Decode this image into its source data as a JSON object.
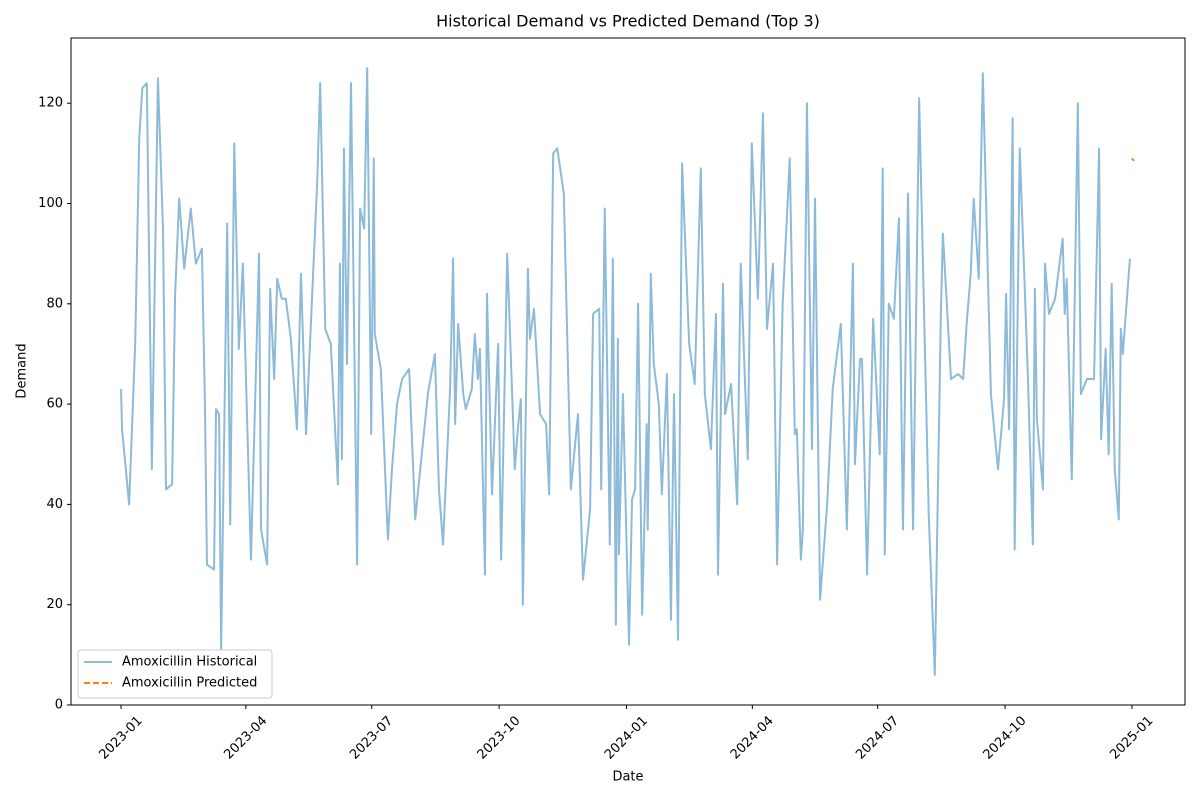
{
  "chart_data": {
    "type": "line",
    "title": "Historical Demand vs Predicted Demand (Top 3)",
    "xlabel": "Date",
    "ylabel": "Demand",
    "xlim": [
      2022.901,
      2025.105
    ],
    "ylim": [
      0,
      133
    ],
    "xticks": [
      {
        "value": 2023.0,
        "label": "2023-01"
      },
      {
        "value": 2023.247,
        "label": "2023-04"
      },
      {
        "value": 2023.496,
        "label": "2023-07"
      },
      {
        "value": 2023.748,
        "label": "2023-10"
      },
      {
        "value": 2024.0,
        "label": "2024-01"
      },
      {
        "value": 2024.249,
        "label": "2024-04"
      },
      {
        "value": 2024.497,
        "label": "2024-07"
      },
      {
        "value": 2024.749,
        "label": "2024-10"
      },
      {
        "value": 2025.0,
        "label": "2025-01"
      }
    ],
    "yticks": [
      0,
      20,
      40,
      60,
      80,
      100,
      120
    ],
    "grid": false,
    "legend": "lower left",
    "series": [
      {
        "name": "Amoxicillin Historical",
        "color": "#8ebad9",
        "linestyle": "solid",
        "x": [
          2023.0,
          2023.002,
          2023.016,
          2023.028,
          2023.036,
          2023.042,
          2023.051,
          2023.061,
          2023.073,
          2023.083,
          2023.089,
          2023.101,
          2023.107,
          2023.115,
          2023.125,
          2023.138,
          2023.148,
          2023.16,
          2023.166,
          2023.17,
          2023.184,
          2023.188,
          2023.194,
          2023.198,
          2023.21,
          2023.216,
          2023.224,
          2023.233,
          2023.241,
          2023.257,
          2023.273,
          2023.277,
          2023.289,
          2023.295,
          2023.303,
          2023.309,
          2023.318,
          2023.326,
          2023.336,
          2023.348,
          2023.356,
          2023.366,
          2023.38,
          2023.388,
          2023.394,
          2023.404,
          2023.415,
          2023.429,
          2023.433,
          2023.437,
          2023.441,
          2023.447,
          2023.455,
          2023.467,
          2023.473,
          2023.481,
          2023.487,
          2023.495,
          2023.5,
          2023.502,
          2023.514,
          2023.528,
          2023.536,
          2023.546,
          2023.556,
          2023.57,
          2023.582,
          2023.591,
          2023.607,
          2023.621,
          2023.629,
          2023.637,
          2023.651,
          2023.657,
          2023.661,
          2023.667,
          2023.677,
          2023.682,
          2023.694,
          2023.7,
          2023.706,
          2023.71,
          2023.72,
          2023.724,
          2023.734,
          2023.746,
          2023.752,
          2023.764,
          2023.779,
          2023.785,
          2023.791,
          2023.795,
          2023.805,
          2023.809,
          2023.817,
          2023.829,
          2023.841,
          2023.847,
          2023.855,
          2023.863,
          2023.876,
          2023.89,
          2023.904,
          2023.914,
          2023.928,
          2023.934,
          2023.946,
          2023.95,
          2023.957,
          2023.967,
          2023.973,
          2023.979,
          2023.983,
          2023.985,
          2023.993,
          2024.005,
          2024.011,
          2024.017,
          2024.023,
          2024.031,
          2024.04,
          2024.042,
          2024.048,
          2024.054,
          2024.064,
          2024.07,
          2024.08,
          2024.088,
          2024.094,
          2024.102,
          2024.11,
          2024.124,
          2024.135,
          2024.147,
          2024.155,
          2024.167,
          2024.177,
          2024.181,
          2024.191,
          2024.195,
          2024.207,
          2024.219,
          2024.226,
          2024.24,
          2024.248,
          2024.26,
          2024.27,
          2024.278,
          2024.29,
          2024.298,
          2024.309,
          2024.323,
          2024.333,
          2024.337,
          2024.345,
          2024.349,
          2024.357,
          2024.367,
          2024.373,
          2024.383,
          2024.397,
          2024.408,
          2024.424,
          2024.436,
          2024.448,
          2024.452,
          2024.462,
          2024.466,
          2024.476,
          2024.488,
          2024.501,
          2024.507,
          2024.511,
          2024.519,
          2024.529,
          2024.539,
          2024.547,
          2024.557,
          2024.567,
          2024.579,
          2024.598,
          2024.61,
          2024.622,
          2024.626,
          2024.642,
          2024.656,
          2024.666,
          2024.673,
          2024.681,
          2024.687,
          2024.697,
          2024.705,
          2024.721,
          2024.735,
          2024.747,
          2024.751,
          2024.757,
          2024.764,
          2024.768,
          2024.778,
          2024.794,
          2024.804,
          2024.808,
          2024.812,
          2024.824,
          2024.828,
          2024.836,
          2024.848,
          2024.863,
          2024.867,
          2024.871,
          2024.881,
          2024.893,
          2024.899,
          2024.911,
          2024.925,
          2024.935,
          2024.939,
          2024.948,
          2024.954,
          2024.96,
          2024.966,
          2024.974,
          2024.978,
          2024.982,
          2024.996
        ],
        "values": [
          63,
          55,
          40,
          72,
          113,
          123,
          124,
          47,
          125,
          95,
          43,
          44,
          82,
          101,
          87,
          99,
          88,
          91,
          60,
          28,
          27,
          59,
          58,
          11,
          96,
          36,
          112,
          71,
          88,
          29,
          90,
          35,
          28,
          83,
          65,
          85,
          81,
          81,
          73,
          55,
          86,
          54,
          86,
          104,
          124,
          75,
          72,
          44,
          88,
          49,
          111,
          68,
          124,
          28,
          99,
          95,
          127,
          54,
          109,
          74,
          67,
          33,
          47,
          60,
          65,
          67,
          37,
          46,
          62,
          70,
          43,
          32,
          63,
          89,
          56,
          76,
          62,
          59,
          63,
          74,
          65,
          71,
          26,
          82,
          42,
          72,
          29,
          90,
          47,
          55,
          61,
          20,
          87,
          73,
          79,
          58,
          56,
          42,
          110,
          111,
          102,
          43,
          58,
          25,
          39,
          78,
          79,
          43,
          99,
          32,
          89,
          16,
          73,
          30,
          62,
          12,
          41,
          43,
          80,
          18,
          56,
          35,
          86,
          68,
          60,
          42,
          66,
          17,
          62,
          13,
          108,
          72,
          64,
          107,
          62,
          51,
          78,
          26,
          84,
          58,
          64,
          40,
          88,
          49,
          112,
          81,
          118,
          75,
          88,
          28,
          80,
          109,
          54,
          55,
          29,
          35,
          120,
          51,
          101,
          21,
          40,
          63,
          76,
          35,
          88,
          48,
          69,
          69,
          26,
          77,
          50,
          107,
          30,
          80,
          77,
          97,
          35,
          102,
          35,
          121,
          38,
          6,
          78,
          94,
          65,
          66,
          65,
          76,
          86,
          101,
          85,
          126,
          62,
          47,
          61,
          82,
          55,
          117,
          31,
          111,
          66,
          32,
          83,
          57,
          43,
          88,
          78,
          81,
          93,
          78,
          85,
          45,
          120,
          62,
          65,
          65,
          111,
          53,
          71,
          50,
          84,
          47,
          37,
          75,
          70,
          89
        ]
      },
      {
        "name": "Amoxicillin Predicted",
        "color": "#ff7f0e",
        "linestyle": "dashed",
        "x": [
          2025.0,
          2025.004
        ],
        "values": [
          109,
          108.5
        ]
      }
    ]
  }
}
